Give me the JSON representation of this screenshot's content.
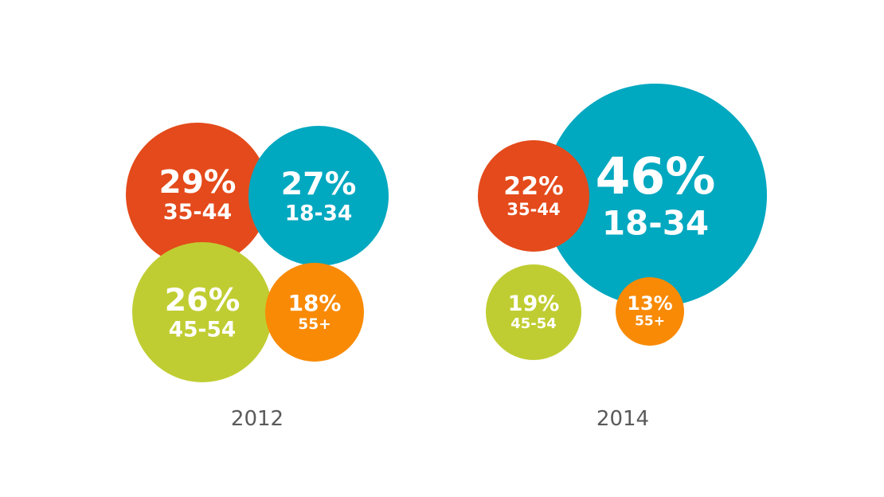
{
  "colors": {
    "18-34": "#00a8c0",
    "35-44": "#e44a1b",
    "45-54": "#c0cd32",
    "55+": "#f98a05",
    "year_text": "#5a5a5a"
  },
  "chart_data": [
    {
      "type": "bubble",
      "year": "2012",
      "unit": "%",
      "categories": [
        "35-44",
        "18-34",
        "45-54",
        "55+"
      ],
      "values": [
        29,
        27,
        26,
        18
      ],
      "labels": [
        "29%",
        "27%",
        "26%",
        "18%"
      ]
    },
    {
      "type": "bubble",
      "year": "2014",
      "unit": "%",
      "categories": [
        "35-44",
        "18-34",
        "45-54",
        "55+"
      ],
      "values": [
        22,
        46,
        19,
        13
      ],
      "labels": [
        "22%",
        "46%",
        "19%",
        "13%"
      ]
    }
  ]
}
